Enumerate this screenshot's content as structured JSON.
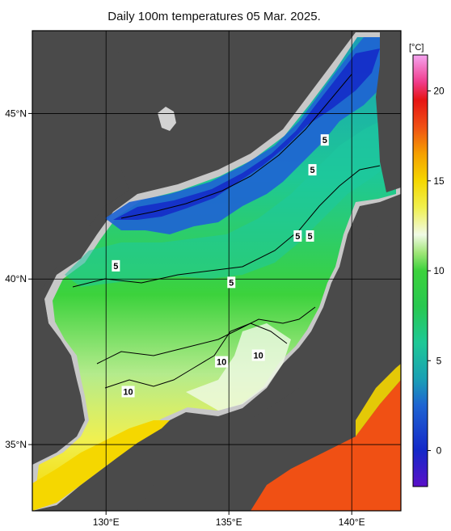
{
  "title": "Daily 100m temperatures 05 Mar. 2025.",
  "map": {
    "lon_range": [
      127,
      142
    ],
    "lat_range": [
      33,
      47.5
    ],
    "x_ticks": [
      {
        "value": 130,
        "label": "130°E"
      },
      {
        "value": 135,
        "label": "135°E"
      },
      {
        "value": 140,
        "label": "140°E"
      }
    ],
    "y_ticks": [
      {
        "value": 45,
        "label": "45°N"
      },
      {
        "value": 40,
        "label": "40°N"
      },
      {
        "value": 35,
        "label": "35°N"
      }
    ],
    "contour_labels": [
      {
        "text": "5",
        "lon": 138.9,
        "lat": 44.2
      },
      {
        "text": "5",
        "lon": 138.4,
        "lat": 43.3
      },
      {
        "text": "5",
        "lon": 137.8,
        "lat": 41.3
      },
      {
        "text": "5",
        "lon": 138.3,
        "lat": 41.3
      },
      {
        "text": "5",
        "lon": 130.4,
        "lat": 40.4
      },
      {
        "text": "5",
        "lon": 135.1,
        "lat": 39.9
      },
      {
        "text": "10",
        "lon": 134.7,
        "lat": 37.5
      },
      {
        "text": "10",
        "lon": 136.2,
        "lat": 37.7
      },
      {
        "text": "10",
        "lon": 130.9,
        "lat": 36.6
      }
    ]
  },
  "colorbar": {
    "unit": "[°C]",
    "range": [
      -2,
      22
    ],
    "ticks": [
      {
        "value": 0,
        "label": "0"
      },
      {
        "value": 5,
        "label": "5"
      },
      {
        "value": 10,
        "label": "10"
      },
      {
        "value": 15,
        "label": "15"
      },
      {
        "value": 20,
        "label": "20"
      }
    ],
    "stops": [
      {
        "value": -2,
        "color": "#5a10c8"
      },
      {
        "value": 0,
        "color": "#1428c8"
      },
      {
        "value": 2.5,
        "color": "#1e64d2"
      },
      {
        "value": 4,
        "color": "#1aa0b4"
      },
      {
        "value": 6,
        "color": "#1ec896"
      },
      {
        "value": 8,
        "color": "#28c850"
      },
      {
        "value": 10,
        "color": "#3cd23c"
      },
      {
        "value": 11,
        "color": "#a0e678"
      },
      {
        "value": 12,
        "color": "#f0fae6"
      },
      {
        "value": 13.5,
        "color": "#f0f050"
      },
      {
        "value": 15,
        "color": "#f5d700"
      },
      {
        "value": 16.5,
        "color": "#f5a000"
      },
      {
        "value": 18,
        "color": "#f05014"
      },
      {
        "value": 19.5,
        "color": "#e61414"
      },
      {
        "value": 20.5,
        "color": "#f03c8c"
      },
      {
        "value": 22,
        "color": "#f5a5f0"
      }
    ]
  }
}
